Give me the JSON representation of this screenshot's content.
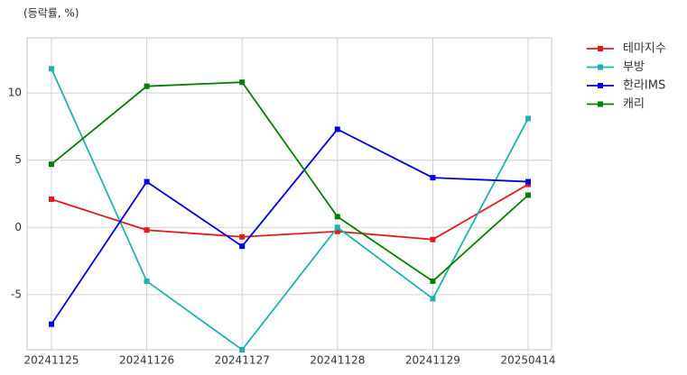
{
  "chart_data": {
    "type": "line",
    "y_label": "(등락률, %)",
    "categories": [
      "20241125",
      "20241126",
      "20241127",
      "20241128",
      "20241129",
      "20250414"
    ],
    "series": [
      {
        "name": "테마지수",
        "color": "#e31a1c",
        "values": [
          2.1,
          -0.2,
          -0.7,
          -0.3,
          -0.9,
          3.2
        ]
      },
      {
        "name": "부방",
        "color": "#20b2aa",
        "values": [
          11.8,
          -4.0,
          -9.1,
          0.0,
          -5.3,
          8.1
        ]
      },
      {
        "name": "한라IMS",
        "color": "#0000dd",
        "values": [
          -7.2,
          3.4,
          -1.4,
          7.3,
          3.7,
          3.4
        ]
      },
      {
        "name": "캐리",
        "color": "#008000",
        "values": [
          4.7,
          10.5,
          10.8,
          0.8,
          -4.0,
          2.4
        ]
      }
    ],
    "ylim": [
      -9.1,
      14.1
    ],
    "yticks": [
      -5,
      0,
      5,
      10
    ],
    "grid": true,
    "legend": "outside-top-right"
  }
}
